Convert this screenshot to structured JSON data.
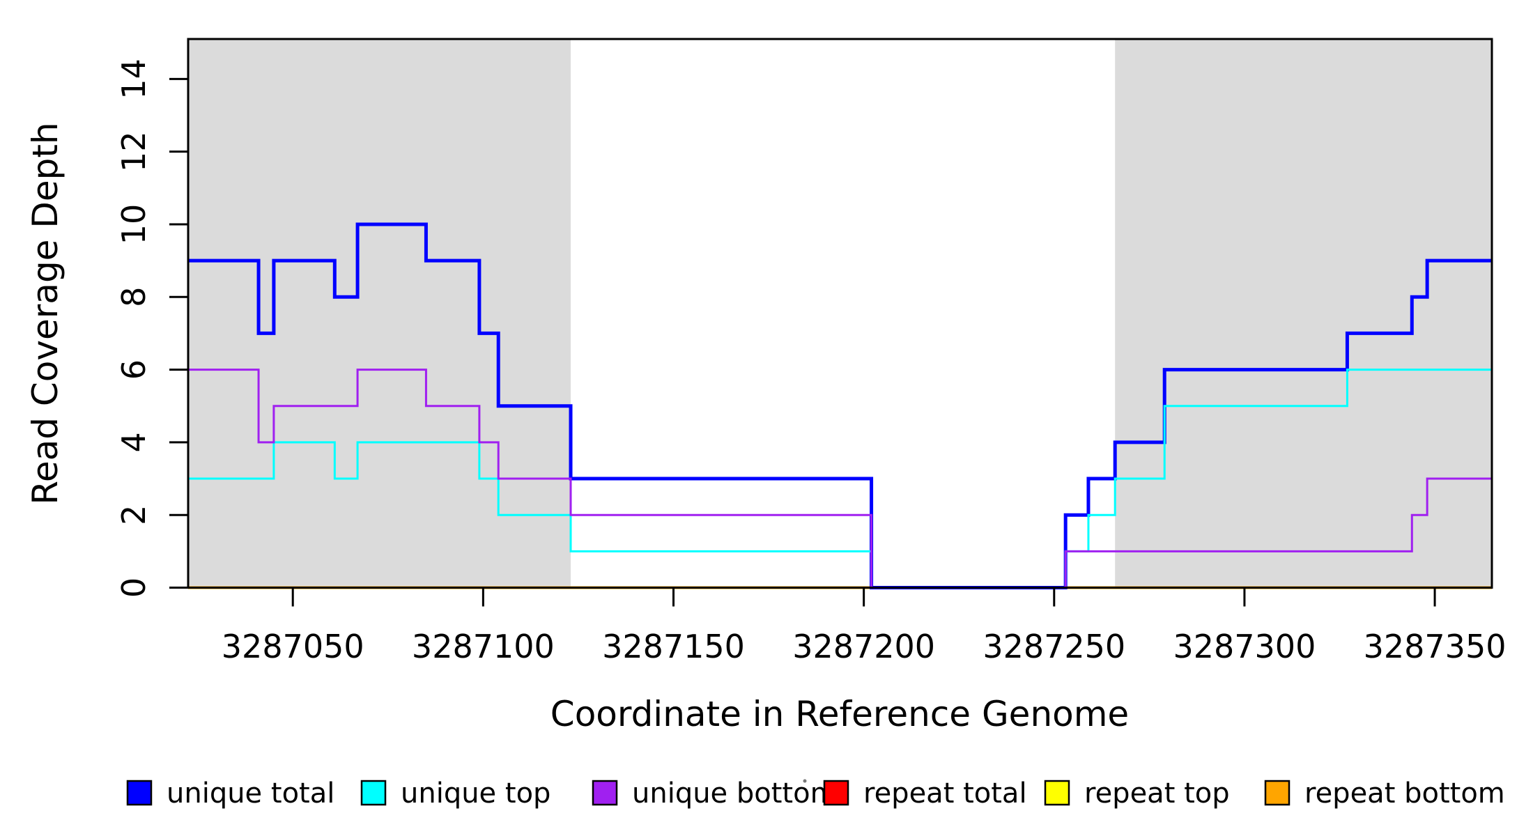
{
  "figure": {
    "background": "#ffffff",
    "box_color": "#000000"
  },
  "chart_data": {
    "type": "line",
    "subtype": "step-coverage",
    "title": "",
    "xlabel": "Coordinate in Reference Genome",
    "ylabel": "Read Coverage Depth",
    "xlim": [
      3287022.5,
      3287365
    ],
    "ylim": [
      0,
      15.1
    ],
    "grid": false,
    "x_ticks": [
      3287050,
      3287100,
      3287150,
      3287200,
      3287250,
      3287300,
      3287350
    ],
    "y_ticks": [
      0,
      2,
      4,
      6,
      8,
      10,
      12,
      14
    ],
    "shaded_regions": [
      {
        "name": "repeat-region-left",
        "from": 3287022.5,
        "to": 3287123,
        "color": "#DBDBDB"
      },
      {
        "name": "repeat-region-right",
        "from": 3287266,
        "to": 3287365,
        "color": "#DBDBDB"
      }
    ],
    "draw_order": [
      "repeat total",
      "repeat top",
      "repeat bottom",
      "unique total",
      "unique top",
      "unique bottom"
    ],
    "series": [
      {
        "name": "unique total",
        "color": "#0000FF",
        "width": 5,
        "steps": [
          [
            3287022.5,
            9
          ],
          [
            3287041,
            7
          ],
          [
            3287045,
            9
          ],
          [
            3287061,
            8
          ],
          [
            3287067,
            10
          ],
          [
            3287085,
            9
          ],
          [
            3287099,
            7
          ],
          [
            3287104,
            5
          ],
          [
            3287123,
            3
          ],
          [
            3287202,
            0
          ],
          [
            3287253,
            2
          ],
          [
            3287259,
            3
          ],
          [
            3287266,
            4
          ],
          [
            3287279,
            6
          ],
          [
            3287327,
            7
          ],
          [
            3287344,
            8
          ],
          [
            3287348,
            9
          ]
        ]
      },
      {
        "name": "unique top",
        "color": "#00FFFF",
        "width": 3,
        "steps": [
          [
            3287022.5,
            3
          ],
          [
            3287045,
            4
          ],
          [
            3287061,
            3
          ],
          [
            3287067,
            4
          ],
          [
            3287099,
            3
          ],
          [
            3287104,
            2
          ],
          [
            3287123,
            1
          ],
          [
            3287202,
            0
          ],
          [
            3287253,
            1
          ],
          [
            3287259,
            2
          ],
          [
            3287266,
            3
          ],
          [
            3287279,
            5
          ],
          [
            3287327,
            6
          ]
        ]
      },
      {
        "name": "unique bottom",
        "color": "#A020F0",
        "width": 3,
        "steps": [
          [
            3287022.5,
            6
          ],
          [
            3287041,
            4
          ],
          [
            3287045,
            5
          ],
          [
            3287067,
            6
          ],
          [
            3287085,
            5
          ],
          [
            3287099,
            4
          ],
          [
            3287104,
            3
          ],
          [
            3287123,
            2
          ],
          [
            3287202,
            0
          ],
          [
            3287253,
            1
          ],
          [
            3287344,
            2
          ],
          [
            3287348,
            3
          ]
        ]
      },
      {
        "name": "repeat total",
        "color": "#FF0000",
        "width": 3,
        "steps": [
          [
            3287022.5,
            0
          ]
        ]
      },
      {
        "name": "repeat top",
        "color": "#FFFF00",
        "width": 3,
        "steps": [
          [
            3287022.5,
            0
          ]
        ]
      },
      {
        "name": "repeat bottom",
        "color": "#FFA500",
        "width": 4,
        "steps": [
          [
            3287022.5,
            0
          ]
        ]
      }
    ],
    "legend_position": "bottom"
  },
  "legend": {
    "items": [
      {
        "label": "unique total",
        "color": "#0000FF"
      },
      {
        "label": "unique top",
        "color": "#00FFFF"
      },
      {
        "label": "unique bottom",
        "color": "#A020F0"
      },
      {
        "label": "repeat total",
        "color": "#FF0000"
      },
      {
        "label": "repeat top",
        "color": "#FFFF00"
      },
      {
        "label": "repeat bottom",
        "color": "#FFA500"
      }
    ]
  }
}
